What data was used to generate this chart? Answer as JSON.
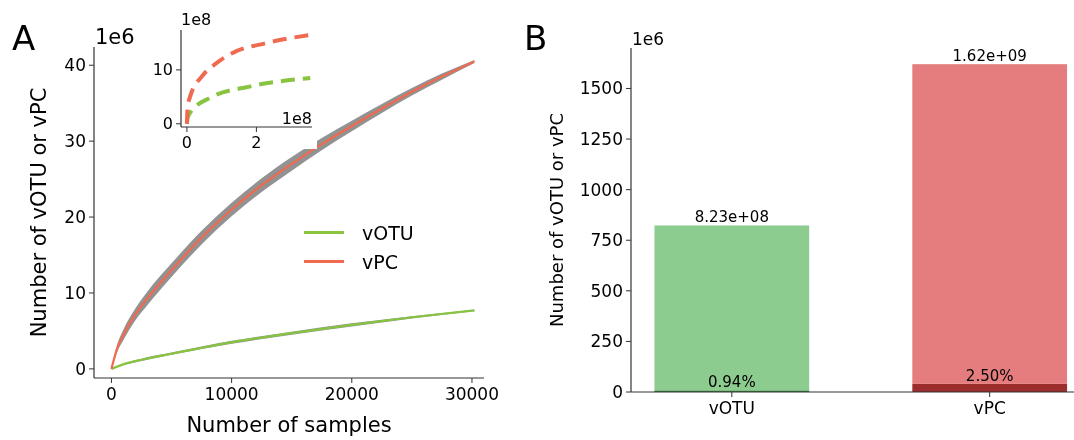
{
  "chart_data": [
    {
      "type": "line",
      "xlabel": "Number of samples",
      "ylabel": "Number of vOTU or vPC",
      "annotations": [
        "A",
        "1e6"
      ],
      "legend": "right",
      "xlim": [
        -1450,
        31000
      ],
      "ylim": [
        -1.2,
        42.4
      ],
      "xticks": [
        0,
        10000,
        20000,
        30000
      ],
      "yticks": [
        0,
        10,
        20,
        30,
        40
      ],
      "x": [
        0,
        500,
        1000,
        2000,
        3000,
        5000,
        7500,
        10000,
        12500,
        15000,
        17500,
        20000,
        22500,
        25000,
        27500,
        30200
      ],
      "series": [
        {
          "name": "vOTU",
          "color": "#88c440",
          "x": [
            0,
            1000,
            2500,
            5000,
            10000,
            15000,
            20000,
            25000,
            30200
          ],
          "values": [
            0,
            0.6,
            1.2,
            2,
            3.5,
            4.7,
            5.8,
            6.8,
            7.7
          ],
          "lower": [
            0,
            0.5,
            1.05,
            1.85,
            3.3,
            4.5,
            5.6,
            6.65,
            7.6
          ],
          "upper": [
            0,
            0.7,
            1.35,
            2.15,
            3.7,
            4.9,
            6,
            6.95,
            7.8
          ]
        },
        {
          "name": "vPC",
          "color": "#f06a50",
          "values": [
            0,
            2.8,
            4.5,
            7.2,
            9.3,
            13,
            17.3,
            21,
            24.2,
            27,
            29.6,
            32,
            34.3,
            36.5,
            38.5,
            40.5
          ],
          "lower": [
            0,
            2.3,
            3.8,
            6.4,
            8.4,
            12.1,
            16.4,
            20.1,
            23.3,
            26.1,
            28.8,
            31.3,
            33.7,
            36,
            38.1,
            40.3
          ],
          "upper": [
            0,
            3.3,
            5.2,
            8,
            10.2,
            13.9,
            18.2,
            21.9,
            25.1,
            27.9,
            30.4,
            32.7,
            34.9,
            37,
            38.9,
            40.7
          ]
        }
      ]
    },
    {
      "type": "line",
      "line_style": "dashed",
      "annotations": [
        "1e8",
        "1e8"
      ],
      "xlim": [
        -0.17,
        3.6
      ],
      "ylim": [
        -0.6,
        17.4
      ],
      "xticks": [
        0,
        2
      ],
      "yticks": [
        0,
        10
      ],
      "series": [
        {
          "color": "#88c440",
          "x": [
            0,
            0.02,
            0.09,
            0.66,
            1.8,
            3.55
          ],
          "values": [
            0,
            1,
            2,
            4.8,
            6.9,
            8.5
          ]
        },
        {
          "color": "#f06a50",
          "x": [
            0,
            0.02,
            0.09,
            0.46,
            0.86,
            1.3,
            2.3,
            3.55
          ],
          "values": [
            0,
            3,
            5,
            9,
            11.3,
            13.1,
            15,
            16.5
          ]
        }
      ]
    },
    {
      "type": "bar",
      "stacked": true,
      "ylabel": "Number of vOTU or vPC",
      "annotations": [
        "B",
        "1e6",
        {
          "text": "0.94%",
          "x": "vOTU",
          "y": 8
        },
        {
          "text": "2.50%",
          "x": "vPC",
          "y": 40
        }
      ],
      "categories": [
        "vOTU",
        "vPC"
      ],
      "ylim": [
        0,
        1700
      ],
      "yticks": [
        0,
        250,
        500,
        750,
        1000,
        1250,
        1500
      ],
      "totals": [
        "8.23e+08",
        "1.62e+09"
      ],
      "series": [
        {
          "colors": [
            "#2e7d32",
            "#9b2d2d"
          ],
          "values": [
            8,
            40
          ]
        },
        {
          "colors": [
            "#8dcc8f",
            "#e57d7e"
          ],
          "values": [
            815,
            1580
          ]
        }
      ]
    }
  ]
}
